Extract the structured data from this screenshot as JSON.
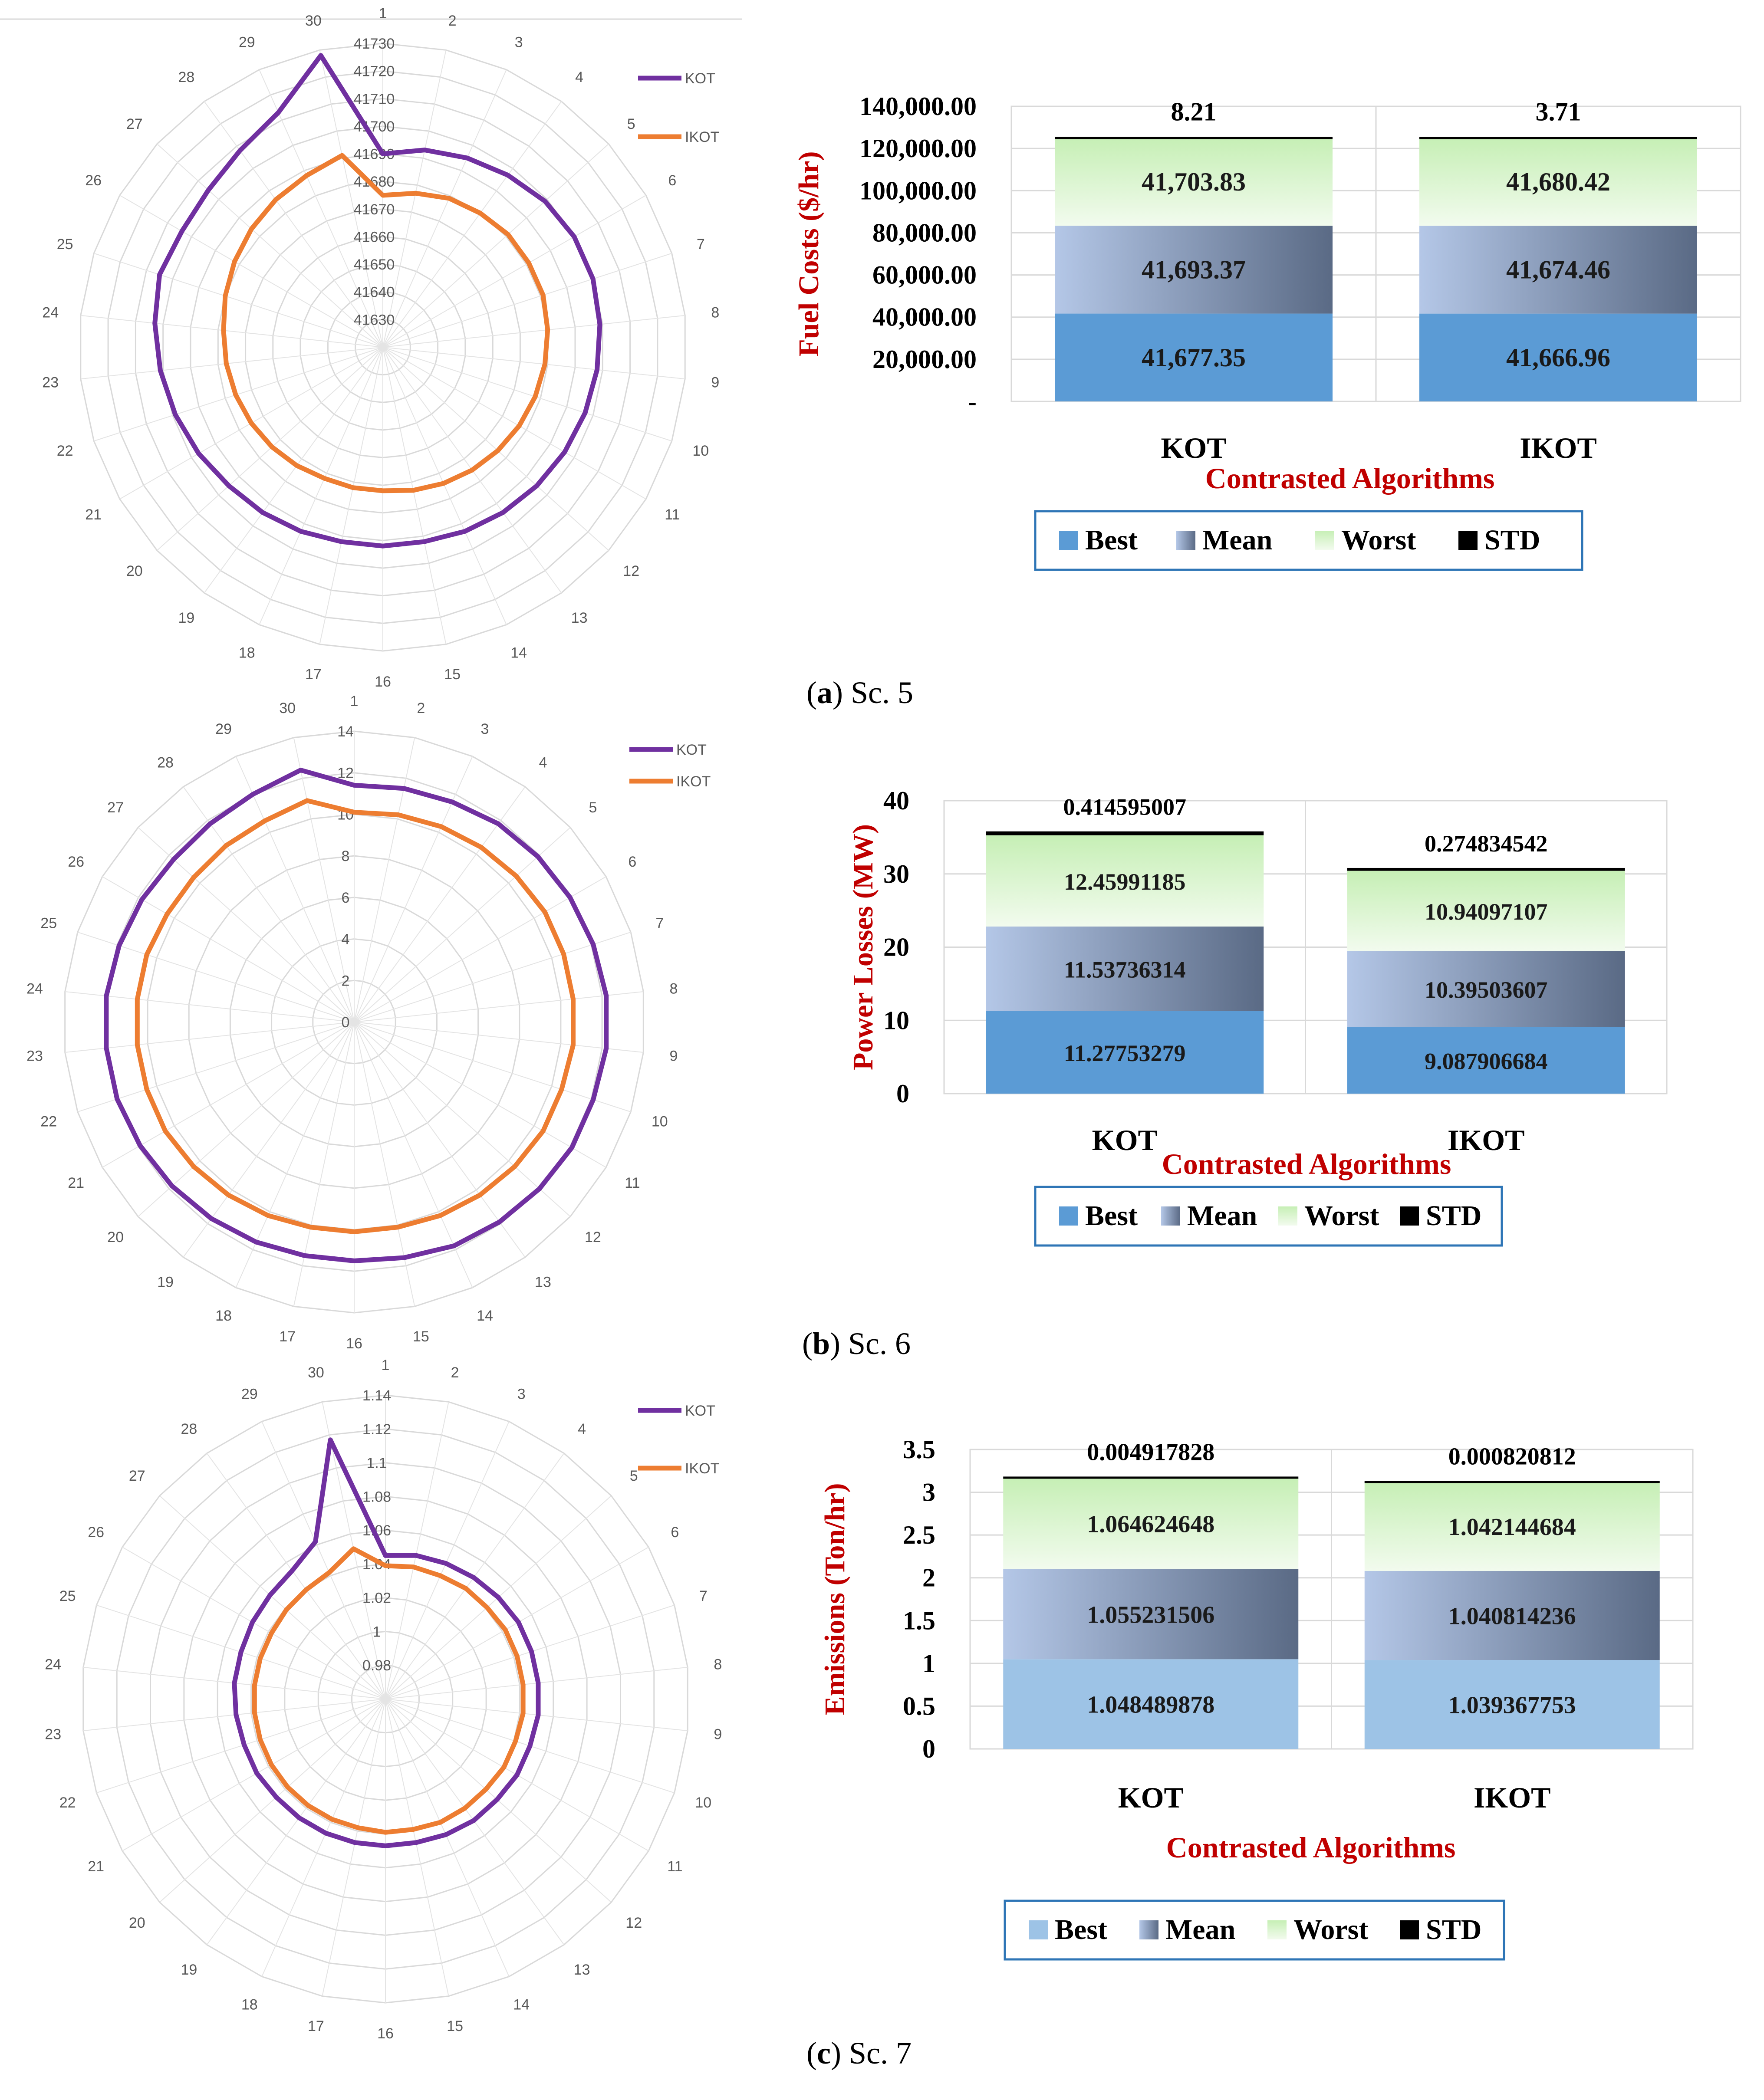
{
  "chart_data": [
    {
      "panel": "a",
      "type": "radar",
      "categories": [
        "1",
        "2",
        "3",
        "4",
        "5",
        "6",
        "7",
        "8",
        "9",
        "10",
        "11",
        "12",
        "13",
        "14",
        "15",
        "16",
        "17",
        "18",
        "19",
        "20",
        "21",
        "22",
        "23",
        "24",
        "25",
        "26",
        "27",
        "28",
        "29",
        "30"
      ],
      "rlim": [
        41620,
        41730
      ],
      "ticks": [
        "41630",
        "41640",
        "41650",
        "41660",
        "41670",
        "41680",
        "41690",
        "41700",
        "41710",
        "41720",
        "41730"
      ],
      "tick_values": [
        41630,
        41640,
        41650,
        41660,
        41670,
        41680,
        41690,
        41700,
        41710,
        41720,
        41730
      ],
      "series": [
        {
          "name": "KOT",
          "color": "#7030A0",
          "values": [
            41690,
            41693,
            41695,
            41697,
            41699,
            41700,
            41700,
            41699,
            41698,
            41697,
            41696,
            41695,
            41694,
            41693,
            41692,
            41692,
            41692,
            41693,
            41694,
            41695,
            41697,
            41699,
            41701,
            41703,
            41705,
            41704,
            41705,
            41708,
            41713,
            41728
          ]
        },
        {
          "name": "IKOT",
          "color": "#ED7D31",
          "values": [
            41675,
            41677,
            41679,
            41680,
            41681,
            41681,
            41681,
            41680,
            41679,
            41678,
            41677,
            41676,
            41675,
            41674,
            41673,
            41672,
            41672,
            41672,
            41673,
            41674,
            41675,
            41676,
            41677,
            41678,
            41680,
            41682,
            41684,
            41686,
            41688,
            41691
          ]
        }
      ]
    },
    {
      "panel": "a",
      "type": "bar",
      "stacked": true,
      "ylabel": "Fuel Costs ($/hr)",
      "xlabel": "Contrasted Algorithms",
      "ylim": [
        0,
        140000
      ],
      "yticks": [
        "140,000.00",
        "120,000.00",
        "100,000.00",
        "80,000.00",
        "60,000.00",
        "40,000.00",
        "20,000.00",
        "-"
      ],
      "ytick_values": [
        140000,
        120000,
        100000,
        80000,
        60000,
        40000,
        20000,
        0
      ],
      "categories": [
        "KOT",
        "IKOT"
      ],
      "series": [
        {
          "name": "Best",
          "values": [
            41677.35,
            41666.96
          ],
          "labels": [
            "41,677.35",
            "41,666.96"
          ]
        },
        {
          "name": "Mean",
          "values": [
            41693.37,
            41674.46
          ],
          "labels": [
            "41,693.37",
            "41,674.46"
          ]
        },
        {
          "name": "Worst",
          "values": [
            41703.83,
            41680.42
          ],
          "labels": [
            "41,703.83",
            "41,680.42"
          ]
        },
        {
          "name": "STD",
          "values": [
            8.21,
            3.71
          ],
          "labels": [
            "8.21",
            "3.71"
          ]
        }
      ],
      "legend": [
        "Best",
        "Mean",
        "Worst",
        "STD"
      ]
    },
    {
      "panel": "b",
      "type": "radar",
      "categories": [
        "1",
        "2",
        "3",
        "4",
        "5",
        "6",
        "7",
        "8",
        "9",
        "10",
        "11",
        "12",
        "13",
        "14",
        "15",
        "16",
        "17",
        "18",
        "19",
        "20",
        "21",
        "22",
        "23",
        "24",
        "25",
        "26",
        "27",
        "28",
        "29",
        "30"
      ],
      "rlim": [
        0,
        14
      ],
      "ticks": [
        "0",
        "2",
        "4",
        "6",
        "8",
        "10",
        "12",
        "14"
      ],
      "tick_values": [
        0,
        2,
        4,
        6,
        8,
        10,
        12,
        14
      ],
      "series": [
        {
          "name": "KOT",
          "color": "#7030A0",
          "values": [
            11.4,
            11.5,
            11.6,
            11.8,
            11.9,
            12.0,
            12.1,
            12.2,
            12.2,
            12.1,
            12.1,
            12.0,
            11.9,
            11.8,
            11.6,
            11.5,
            11.5,
            11.6,
            11.7,
            11.8,
            11.9,
            12.0,
            12.0,
            12.0,
            11.9,
            11.8,
            11.7,
            11.8,
            12.0,
            12.4
          ]
        },
        {
          "name": "IKOT",
          "color": "#ED7D31",
          "values": [
            10.1,
            10.2,
            10.3,
            10.4,
            10.5,
            10.6,
            10.6,
            10.6,
            10.6,
            10.5,
            10.5,
            10.4,
            10.3,
            10.2,
            10.1,
            10.1,
            10.1,
            10.2,
            10.3,
            10.4,
            10.5,
            10.5,
            10.5,
            10.5,
            10.5,
            10.4,
            10.4,
            10.5,
            10.6,
            10.9
          ]
        }
      ]
    },
    {
      "panel": "b",
      "type": "bar",
      "stacked": true,
      "ylabel": "Power Losses (MW)",
      "xlabel": "Contrasted Algorithms",
      "ylim": [
        0,
        40
      ],
      "yticks": [
        "40",
        "30",
        "20",
        "10",
        "0"
      ],
      "ytick_values": [
        40,
        30,
        20,
        10,
        0
      ],
      "categories": [
        "KOT",
        "IKOT"
      ],
      "series": [
        {
          "name": "Best",
          "values": [
            11.27753279,
            9.087906684
          ],
          "labels": [
            "11.27753279",
            "9.087906684"
          ]
        },
        {
          "name": "Mean",
          "values": [
            11.53736314,
            10.39503607
          ],
          "labels": [
            "11.53736314",
            "10.39503607"
          ]
        },
        {
          "name": "Worst",
          "values": [
            12.45991185,
            10.94097107
          ],
          "labels": [
            "12.45991185",
            "10.94097107"
          ]
        },
        {
          "name": "STD",
          "values": [
            0.414595007,
            0.274834542
          ],
          "labels": [
            "0.414595007",
            "0.274834542"
          ]
        }
      ],
      "legend": [
        "Best",
        "Mean",
        "Worst",
        "STD"
      ]
    },
    {
      "panel": "c",
      "type": "radar",
      "categories": [
        "1",
        "2",
        "3",
        "4",
        "5",
        "6",
        "7",
        "8",
        "9",
        "10",
        "11",
        "12",
        "13",
        "14",
        "15",
        "16",
        "17",
        "18",
        "19",
        "20",
        "21",
        "22",
        "23",
        "24",
        "25",
        "26",
        "27",
        "28",
        "29",
        "30"
      ],
      "rlim": [
        0.96,
        1.14
      ],
      "ticks": [
        "0.98",
        "1",
        "1.02",
        "1.04",
        "1.06",
        "1.08",
        "1.1",
        "1.12",
        "1.14"
      ],
      "tick_values": [
        0.98,
        1.0,
        1.02,
        1.04,
        1.06,
        1.08,
        1.1,
        1.12,
        1.14
      ],
      "series": [
        {
          "name": "KOT",
          "color": "#7030A0",
          "values": [
            1.045,
            1.047,
            1.048,
            1.049,
            1.05,
            1.051,
            1.051,
            1.051,
            1.051,
            1.05,
            1.05,
            1.049,
            1.049,
            1.048,
            1.047,
            1.047,
            1.047,
            1.047,
            1.047,
            1.047,
            1.048,
            1.048,
            1.049,
            1.05,
            1.05,
            1.051,
            1.052,
            1.054,
            1.062,
            1.117
          ]
        },
        {
          "name": "IKOT",
          "color": "#ED7D31",
          "values": [
            1.039,
            1.04,
            1.04,
            1.041,
            1.041,
            1.042,
            1.042,
            1.042,
            1.042,
            1.041,
            1.041,
            1.04,
            1.04,
            1.04,
            1.039,
            1.039,
            1.038,
            1.038,
            1.038,
            1.038,
            1.038,
            1.038,
            1.038,
            1.038,
            1.038,
            1.038,
            1.039,
            1.04,
            1.042,
            1.051
          ]
        }
      ]
    },
    {
      "panel": "c",
      "type": "bar",
      "stacked": true,
      "ylabel": "Emissions (Ton/hr)",
      "xlabel": "Contrasted Algorithms",
      "ylim": [
        0,
        3.5
      ],
      "yticks": [
        "3.5",
        "3",
        "2.5",
        "2",
        "1.5",
        "1",
        "0.5",
        "0"
      ],
      "ytick_values": [
        3.5,
        3,
        2.5,
        2,
        1.5,
        1,
        0.5,
        0
      ],
      "categories": [
        "KOT",
        "IKOT"
      ],
      "series": [
        {
          "name": "Best",
          "values": [
            1.048489878,
            1.039367753
          ],
          "labels": [
            "1.048489878",
            "1.039367753"
          ]
        },
        {
          "name": "Mean",
          "values": [
            1.055231506,
            1.040814236
          ],
          "labels": [
            "1.055231506",
            "1.040814236"
          ]
        },
        {
          "name": "Worst",
          "values": [
            1.064624648,
            1.042144684
          ],
          "labels": [
            "1.064624648",
            "1.042144684"
          ]
        },
        {
          "name": "STD",
          "values": [
            0.004917828,
            0.000820812
          ],
          "labels": [
            "0.004917828",
            "0.000820812"
          ]
        }
      ],
      "legend": [
        "Best",
        "Mean",
        "Worst",
        "STD"
      ]
    }
  ],
  "captions": [
    {
      "letter": "a",
      "text": "Sc. 5"
    },
    {
      "letter": "b",
      "text": "Sc. 6"
    },
    {
      "letter": "c",
      "text": "Sc. 7"
    }
  ],
  "colors": {
    "kot": "#7030A0",
    "ikot": "#ED7D31",
    "best": "#5B9BD5",
    "best_light": "#9DC3E6",
    "mean_dark": "#5A6A85",
    "mean_light": "#B4C7E7",
    "worst_light": "#F2FBEE",
    "worst_dark": "#C6EFB5",
    "std": "#000000",
    "axis_title": "#C00000",
    "legend_border": "#2E75B6"
  }
}
